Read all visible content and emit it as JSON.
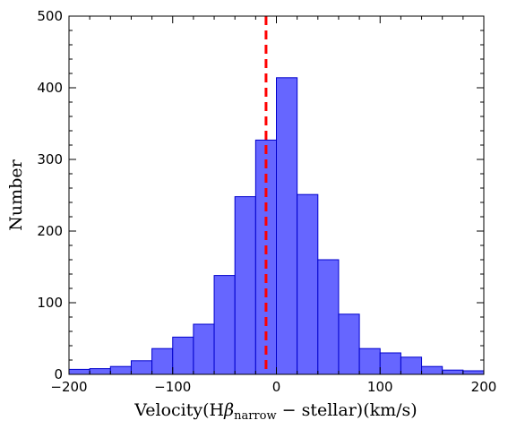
{
  "chart_data": {
    "type": "bar",
    "title": "",
    "xlabel_parts": {
      "prefix": "Velocity(H",
      "beta": "β",
      "sub": "narrow",
      "suffix": " − stellar)(km/s)"
    },
    "ylabel": "Number",
    "xlim": [
      -200,
      200
    ],
    "ylim": [
      0,
      500
    ],
    "x_ticks": [
      -200,
      -100,
      0,
      100,
      200
    ],
    "y_ticks": [
      0,
      100,
      200,
      300,
      400,
      500
    ],
    "x_tick_labels": [
      "−200",
      "−100",
      "0",
      "100",
      "200"
    ],
    "y_tick_labels": [
      "0",
      "100",
      "200",
      "300",
      "400",
      "500"
    ],
    "bin_edges": [
      -200,
      -180,
      -160,
      -140,
      -120,
      -100,
      -80,
      -60,
      -40,
      -20,
      0,
      20,
      40,
      60,
      80,
      100,
      120,
      140,
      160,
      180,
      200
    ],
    "values": [
      7,
      8,
      11,
      19,
      36,
      52,
      70,
      138,
      248,
      327,
      414,
      251,
      160,
      84,
      36,
      30,
      24,
      11,
      6,
      5
    ],
    "bar_fill": "#6666ff",
    "bar_edge": "#0000cc",
    "reference_line_x": -10,
    "reference_line_color": "#ff0000",
    "grid": false
  }
}
